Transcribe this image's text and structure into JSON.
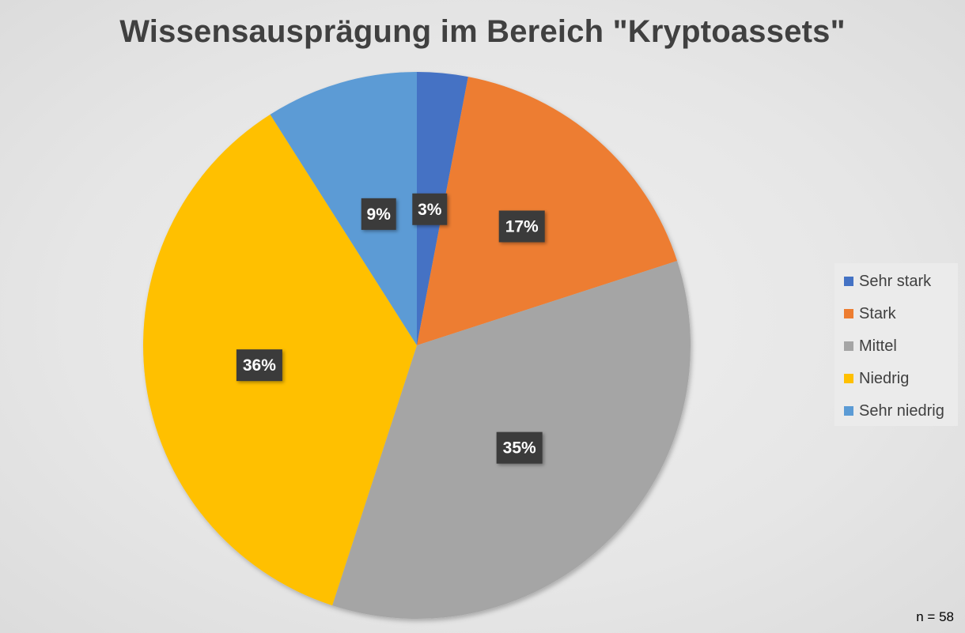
{
  "chart_data": {
    "type": "pie",
    "title": "Wissensausprägung im Bereich \"Kryptoassets\"",
    "categories": [
      "Sehr stark",
      "Stark",
      "Mittel",
      "Niedrig",
      "Sehr niedrig"
    ],
    "values": [
      3,
      17,
      35,
      36,
      9
    ],
    "value_labels": [
      "3%",
      "17%",
      "35%",
      "36%",
      "9%"
    ],
    "colors": [
      "#4472c4",
      "#ed7d31",
      "#a5a5a5",
      "#ffc000",
      "#5b9bd5"
    ],
    "start_angle_deg": 0,
    "direction": "clockwise",
    "legend_position": "right",
    "note": "n = 58"
  }
}
